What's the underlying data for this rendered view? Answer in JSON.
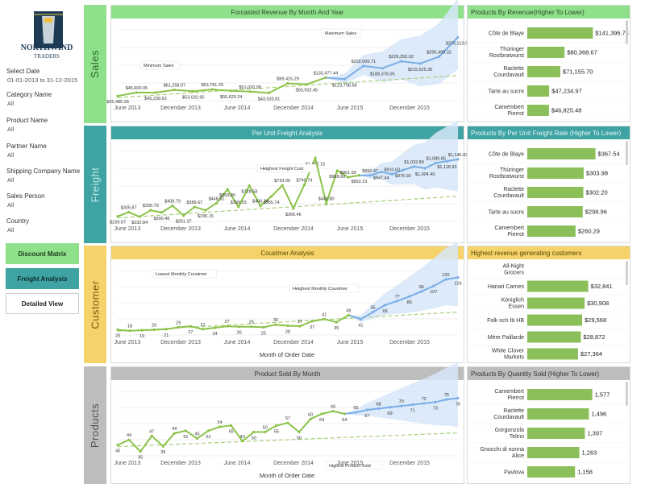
{
  "brand": {
    "name": "NORTHWIND",
    "sub": "TRADERS"
  },
  "filters": [
    {
      "label": "Select Date",
      "value": "01-01-2013 to 31-12-2015"
    },
    {
      "label": "Category Name",
      "value": "All"
    },
    {
      "label": "Product Name",
      "value": "All"
    },
    {
      "label": "Partner Name",
      "value": "All"
    },
    {
      "label": "Shipping Company Name",
      "value": "All"
    },
    {
      "label": "Sales Person",
      "value": "All"
    },
    {
      "label": "Country",
      "value": "All"
    }
  ],
  "nav": {
    "discount": "Discount Matrix",
    "freight": "Freight Analysis",
    "detailed": "Detailed View"
  },
  "sections": {
    "sales": "Sales",
    "freight": "Freight",
    "customer": "Customer",
    "products": "Products"
  },
  "colors": {
    "sales": "#8fe08a",
    "freight": "#3fa3a3",
    "customer": "#f5d36a",
    "products": "#bdbdbd",
    "line": "#8bc34a",
    "bar": "#8bbf5a",
    "forecast": "#7aaee6",
    "band": "#d6e6f8"
  },
  "x_ticks": [
    "June 2013",
    "December 2013",
    "June 2014",
    "December 2014",
    "June 2015",
    "December 2015"
  ],
  "x_axis_title": "Month of Order Date",
  "chart_data": [
    {
      "id": "sales",
      "type": "line",
      "title": "Forcasted Revenue By Month And Year",
      "labels": [
        "$25,485.28",
        "$45,600.05",
        "$45,239.63",
        "$61,258.07",
        "$53,032.95",
        "$63,781.29",
        "$55,629.24",
        "$51,020.08",
        "$43,533.81",
        "$99,415.29",
        "$93,932.45",
        "$133,477.44",
        "$123,798.68",
        "$202,000.71",
        "$188,376.05",
        "$229,250.02",
        "$215,625.36",
        "$256,499.32",
        "$370,123.98"
      ],
      "values": [
        25485.28,
        45600.05,
        45239.63,
        61258.07,
        53032.95,
        63781.29,
        55629.24,
        51020.08,
        43533.81,
        99415.29,
        93932.45,
        133477.44,
        123798.68,
        202000.71,
        188376.05,
        229250.02,
        215625.36,
        256499.32,
        370123.98
      ],
      "actual_count": 12,
      "annotations": [
        "Minimum Sales",
        "Maximum Sales"
      ]
    },
    {
      "id": "freight",
      "type": "line",
      "title": "Per Unit Freight Analysis",
      "labels": [
        "$239.67",
        "$305.87",
        "$232.84",
        "$335.79",
        "$300.46",
        "$408.79",
        "$251.37",
        "$389.67",
        "$336.15",
        "$448.51",
        "$669.80",
        "$390.33",
        "$728.58",
        "$406.74",
        "$555.74",
        "$733.09",
        "$366.46",
        "$740.74",
        "$1,167.15",
        "$446.80",
        "$968.60",
        "$861.99",
        "$892.23",
        "$890.47",
        "$947.44",
        "$910.00",
        "$975.92",
        "$1,032.89",
        "$1,004.40",
        "$1,089.85",
        "$1,118.33",
        "$1,146.82"
      ],
      "values": [
        239.67,
        305.87,
        232.84,
        335.79,
        300.46,
        408.79,
        251.37,
        389.67,
        336.15,
        448.51,
        669.8,
        390.33,
        728.58,
        406.74,
        555.74,
        733.09,
        366.46,
        740.74,
        1167.15,
        446.8,
        968.6,
        861.99,
        892.23,
        890.47,
        947.44,
        910.0,
        975.92,
        1032.89,
        1004.4,
        1089.85,
        1118.33,
        1146.82
      ],
      "actual_count": 23,
      "annotations": [
        "Heighest Freight Cost"
      ]
    },
    {
      "id": "customer",
      "type": "line",
      "title": "Coustmer Analysis",
      "labels": [
        "20",
        "18",
        "19",
        "20",
        "21",
        "25",
        "27",
        "21",
        "24",
        "27",
        "26",
        "26",
        "25",
        "30",
        "28",
        "27",
        "37",
        "41",
        "35",
        "49",
        "41",
        "55",
        "69",
        "77",
        "86",
        "96",
        "107",
        "120",
        "124"
      ],
      "values": [
        20,
        18,
        19,
        20,
        21,
        25,
        27,
        21,
        24,
        27,
        26,
        26,
        25,
        30,
        28,
        27,
        37,
        41,
        35,
        49,
        41,
        55,
        69,
        77,
        86,
        96,
        107,
        120,
        124
      ],
      "actual_count": 20,
      "annotations": [
        "Lowest Monthly Coustmer",
        "Heighest Monthly Coustmer"
      ]
    },
    {
      "id": "products",
      "type": "line",
      "title": "Product Sold By Month",
      "labels": [
        "40",
        "44",
        "35",
        "47",
        "39",
        "49",
        "51",
        "45",
        "51",
        "54",
        "55",
        "43",
        "50",
        "50",
        "55",
        "57",
        "50",
        "60",
        "64",
        "66",
        "64",
        "65",
        "67",
        "68",
        "69",
        "70",
        "71",
        "72",
        "73",
        "75",
        "76"
      ],
      "values": [
        40,
        44,
        35,
        47,
        39,
        49,
        51,
        45,
        51,
        54,
        55,
        43,
        50,
        50,
        55,
        57,
        50,
        60,
        64,
        66,
        64,
        65,
        67,
        68,
        69,
        70,
        71,
        72,
        73,
        75,
        76
      ],
      "actual_count": 21,
      "annotations": [
        "Highest Product Sold"
      ]
    }
  ],
  "bars": [
    {
      "id": "rev",
      "title": "Products By Revenue(Higher To Lower)",
      "items": [
        {
          "name": "Côte de Blaye",
          "label": "$141,396.74",
          "value": 141396.74
        },
        {
          "name": "Thüringer Rostbratwurst",
          "label": "$80,368.67",
          "value": 80368.67
        },
        {
          "name": "Raclette Courdavault",
          "label": "$71,155.70",
          "value": 71155.7
        },
        {
          "name": "Tarte au sucre",
          "label": "$47,234.97",
          "value": 47234.97
        },
        {
          "name": "Camembert Pierrot",
          "label": "$46,825.48",
          "value": 46825.48
        }
      ],
      "max": 160000
    },
    {
      "id": "frt",
      "title": "Products By Per Unit Freight Rate (Higher To Lower)",
      "items": [
        {
          "name": "Côte de Blaye",
          "label": "$367.54",
          "value": 367.54
        },
        {
          "name": "Thüringer Rostbratwurst",
          "label": "$303.98",
          "value": 303.98
        },
        {
          "name": "Raclette Courdavault",
          "label": "$302.20",
          "value": 302.2
        },
        {
          "name": "Tarte au sucre",
          "label": "$298.96",
          "value": 298.96
        },
        {
          "name": "Camembert Pierrot",
          "label": "$260.29",
          "value": 260.29
        }
      ],
      "max": 400
    },
    {
      "id": "cust",
      "title": "Highest revenue generating customers",
      "items": [
        {
          "name": "All-Night Grocers",
          "label": "",
          "value": 0
        },
        {
          "name": "Hanari Carnes",
          "label": "$32,841",
          "value": 32841
        },
        {
          "name": "Königlich Essen",
          "label": "$30,908",
          "value": 30908
        },
        {
          "name": "Folk och fä HB",
          "label": "$29,568",
          "value": 29568
        },
        {
          "name": "Mère Paillarde",
          "label": "$28,872",
          "value": 28872
        },
        {
          "name": "White Clover Markets",
          "label": "$27,364",
          "value": 27364
        }
      ],
      "max": 40000
    },
    {
      "id": "qty",
      "title": "Products By Quantity Sold (Higher To Lower)",
      "items": [
        {
          "name": "Camembert Pierrot",
          "label": "1,577",
          "value": 1577
        },
        {
          "name": "Raclette Courdavault",
          "label": "1,496",
          "value": 1496
        },
        {
          "name": "Gorgonzola Telino",
          "label": "1,397",
          "value": 1397
        },
        {
          "name": "Gnocchi di nonna Alice",
          "label": "1,263",
          "value": 1263
        },
        {
          "name": "Pavlova",
          "label": "1,158",
          "value": 1158
        }
      ],
      "max": 1800
    }
  ]
}
